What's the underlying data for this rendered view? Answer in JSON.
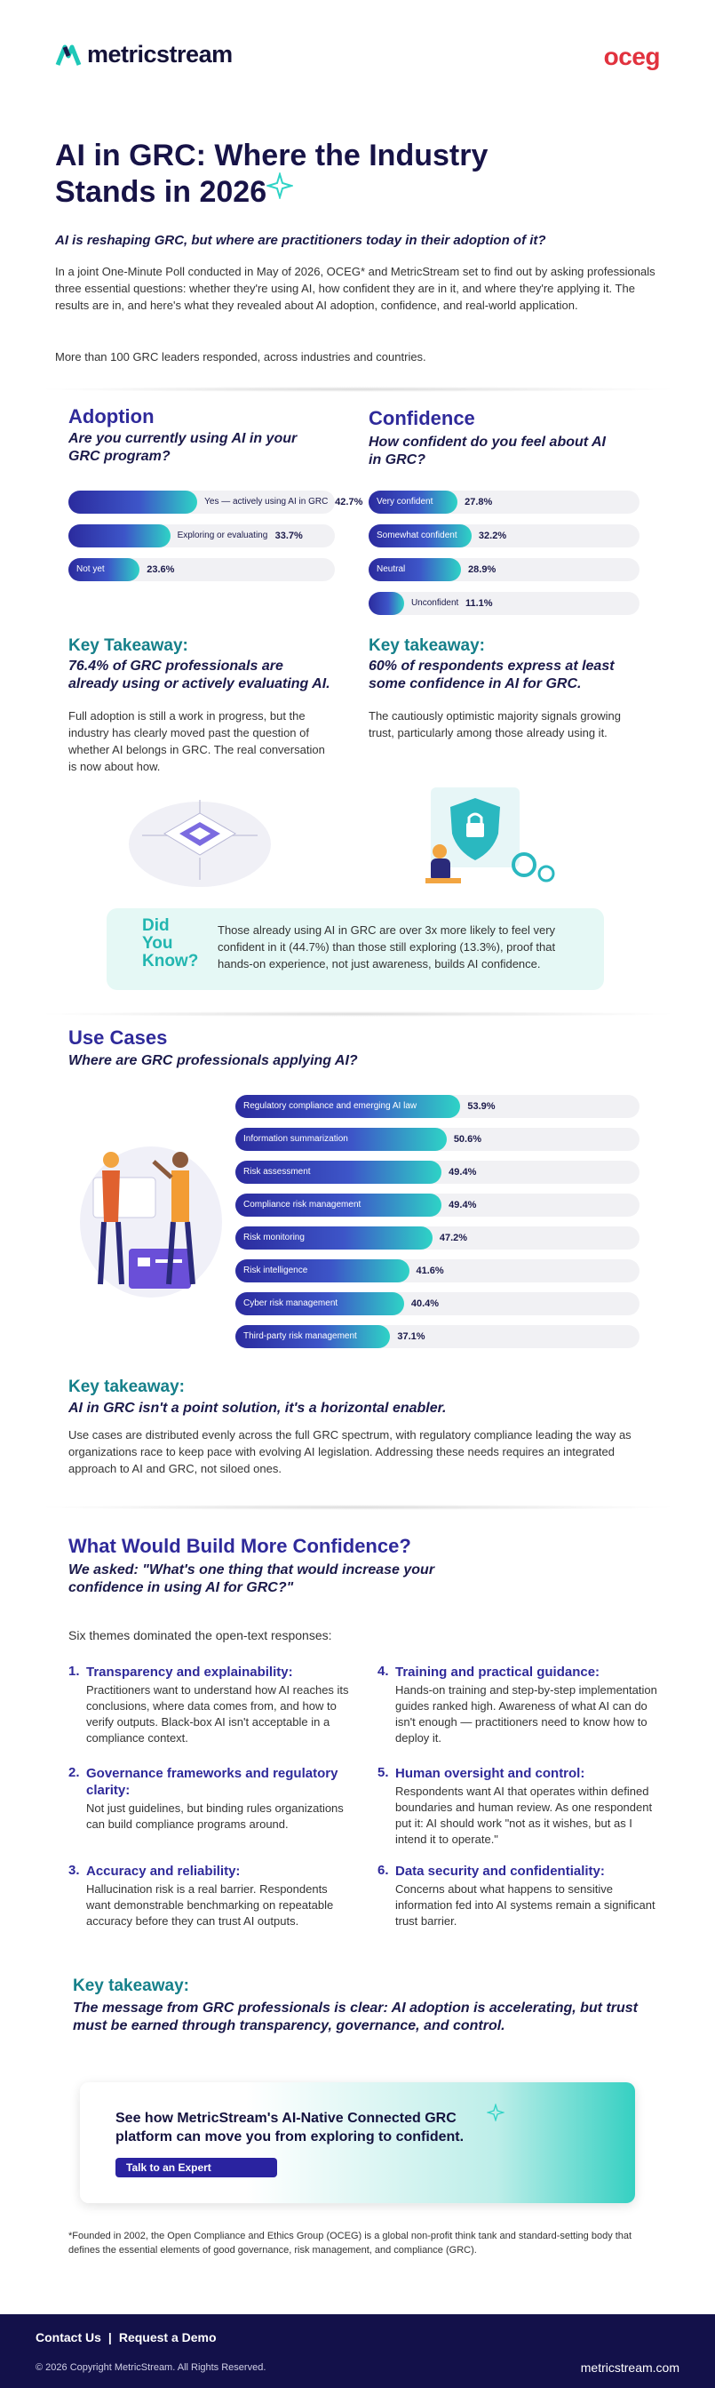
{
  "header": {
    "logo_left": "metricstream",
    "logo_right": "oceg"
  },
  "title": "AI in GRC: Where the Industry Stands in 2026",
  "subtitle": "AI is reshaping GRC, but where are practitioners today in their adoption of it?",
  "intro": [
    "In a joint One-Minute Poll conducted in May of 2026, OCEG* and MetricStream set to find out by asking professionals three essential questions: whether they're using AI, how confident they are in it, and where they're applying it. The results are in, and here's what they revealed about AI adoption, confidence, and real-world application.",
    "More than 100 GRC leaders responded, across industries and countries."
  ],
  "adoption": {
    "heading": "Adoption",
    "question": "Are you currently using AI in your GRC program?",
    "chart": {
      "type": "bar",
      "categories": [
        "Yes — actively using AI in GRC",
        "Exploring or evaluating",
        "Not yet"
      ],
      "values": [
        42.7,
        33.7,
        23.6
      ],
      "value_labels": [
        "42.7%",
        "33.7%",
        "23.6%"
      ]
    },
    "takeaway_heading": "Key Takeaway:",
    "takeaway": "76.4% of GRC professionals are already using or actively evaluating AI.",
    "body": "Full adoption is still a work in progress, but the industry has clearly moved past the question of whether AI belongs in GRC. The real conversation is now about how."
  },
  "confidence": {
    "heading": "Confidence",
    "question": "How confident do you feel about AI in GRC?",
    "chart": {
      "type": "bar",
      "categories": [
        "Very confident",
        "Somewhat confident",
        "Neutral",
        "Unconfident"
      ],
      "values": [
        27.8,
        32.2,
        28.9,
        11.1
      ],
      "value_labels": [
        "27.8%",
        "32.2%",
        "28.9%",
        "11.1%"
      ]
    },
    "takeaway_heading": "Key takeaway:",
    "takeaway": "60% of respondents express at least some confidence in AI for GRC.",
    "body": "The cautiously optimistic majority signals growing trust, particularly among those already using it."
  },
  "did_you_know": {
    "badge": [
      "Did",
      "You",
      "Know?"
    ],
    "text": "Those already using AI in GRC are over 3x more likely to feel very confident in it (44.7%) than those still exploring (13.3%), proof that hands-on experience, not just awareness, builds AI confidence."
  },
  "use_cases": {
    "heading": "Use Cases",
    "question": "Where are GRC professionals applying AI?",
    "chart": {
      "type": "bar",
      "categories": [
        "Regulatory compliance and emerging AI law",
        "Information summarization",
        "Risk assessment",
        "Compliance risk management",
        "Risk monitoring",
        "Risk intelligence",
        "Cyber risk management",
        "Third-party risk management"
      ],
      "values": [
        53.9,
        50.6,
        49.4,
        49.4,
        47.2,
        41.6,
        40.4,
        37.1
      ],
      "value_labels": [
        "53.9%",
        "50.6%",
        "49.4%",
        "49.4%",
        "47.2%",
        "41.6%",
        "40.4%",
        "37.1%"
      ]
    },
    "takeaway_heading": "Key takeaway:",
    "takeaway": "AI in GRC isn't a point solution, it's a horizontal enabler.",
    "body": "Use cases are distributed evenly across the full GRC spectrum, with regulatory compliance leading the way as organizations race to keep pace with evolving AI legislation. Addressing these needs requires an integrated approach to AI and GRC, not siloed ones."
  },
  "build_confidence": {
    "heading": "What Would Build More Confidence?",
    "question": "We asked: \"What's one thing that would increase your confidence in using AI for GRC?\"",
    "intro": "Six themes dominated the open-text responses:",
    "themes": [
      {
        "number": "1.",
        "title": "Transparency and explainability:",
        "body": "Practitioners want to understand how AI reaches its conclusions, where data comes from, and how to verify outputs. Black-box AI isn't acceptable in a compliance context."
      },
      {
        "number": "2.",
        "title": "Governance frameworks and regulatory clarity:",
        "body": "Not just guidelines, but binding rules organizations can build compliance programs around."
      },
      {
        "number": "3.",
        "title": "Accuracy and reliability:",
        "body": "Hallucination risk is a real barrier. Respondents want demonstrable benchmarking on repeatable accuracy before they can trust AI outputs."
      },
      {
        "number": "4.",
        "title": "Training and practical guidance:",
        "body": "Hands-on training and step-by-step implementation guides ranked high. Awareness of what AI can do isn't enough — practitioners need to know how to deploy it."
      },
      {
        "number": "5.",
        "title": "Human oversight and control:",
        "body": "Respondents want AI that operates within defined boundaries and human review. As one respondent put it: AI should work \"not as it wishes, but as I intend it to operate.\""
      },
      {
        "number": "6.",
        "title": "Data security and confidentiality:",
        "body": "Concerns about what happens to sensitive information fed into AI systems remain a significant trust barrier."
      }
    ],
    "takeaway_heading": "Key takeaway:",
    "takeaway": "The message from GRC professionals is clear: AI adoption is accelerating, but trust must be earned through transparency, governance, and control."
  },
  "cta": {
    "text": "See how MetricStream's AI-Native Connected GRC platform can move you from exploring to confident.",
    "button": "Talk to an Expert"
  },
  "footnote": "*Founded in 2002, the Open Compliance and Ethics Group (OCEG) is a global non-profit think tank and standard-setting body that defines the essential elements of good governance, risk management, and compliance (GRC).",
  "footer": {
    "links": [
      "Contact Us",
      "Request a Demo"
    ],
    "separator": "|",
    "copyright": "© 2026 Copyright MetricStream. All Rights Reserved.",
    "site": "metricstream.com"
  }
}
